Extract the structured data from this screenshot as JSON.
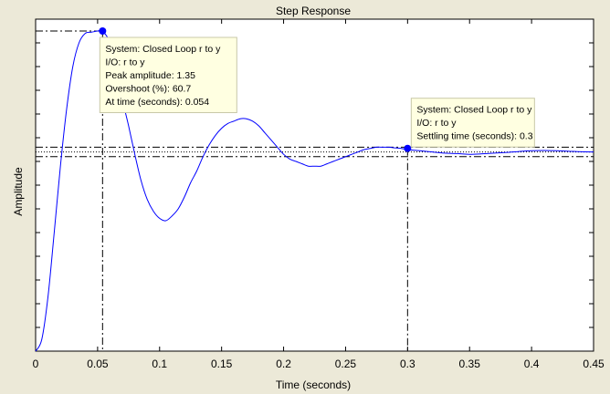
{
  "chart_data": {
    "type": "line",
    "title": "Step Response",
    "xlabel": "Time (seconds)",
    "ylabel": "Amplitude",
    "xlim": [
      0,
      0.45
    ],
    "ylim": [
      0,
      1.4
    ],
    "xticks": [
      "0",
      "0.05",
      "0.1",
      "0.15",
      "0.2",
      "0.25",
      "0.3",
      "0.35",
      "0.4",
      "0.45"
    ],
    "yticks_labeled": false,
    "grid": false,
    "final_value": 0.84,
    "settling_band": [
      0.82,
      0.86
    ],
    "series": [
      {
        "color": "#0000ff",
        "x": [
          0,
          0.005,
          0.01,
          0.015,
          0.02,
          0.025,
          0.03,
          0.035,
          0.04,
          0.045,
          0.05,
          0.054,
          0.06,
          0.065,
          0.07,
          0.075,
          0.08,
          0.085,
          0.09,
          0.095,
          0.1,
          0.105,
          0.11,
          0.115,
          0.12,
          0.125,
          0.13,
          0.135,
          0.14,
          0.145,
          0.15,
          0.155,
          0.16,
          0.165,
          0.17,
          0.175,
          0.18,
          0.185,
          0.19,
          0.195,
          0.2,
          0.205,
          0.21,
          0.215,
          0.22,
          0.225,
          0.23,
          0.235,
          0.24,
          0.245,
          0.25,
          0.255,
          0.26,
          0.265,
          0.27,
          0.275,
          0.28,
          0.285,
          0.29,
          0.295,
          0.3,
          0.31,
          0.32,
          0.33,
          0.34,
          0.35,
          0.36,
          0.37,
          0.38,
          0.39,
          0.4,
          0.41,
          0.42,
          0.43,
          0.44,
          0.45
        ],
        "y": [
          0,
          0.05,
          0.23,
          0.5,
          0.78,
          1.02,
          1.2,
          1.3,
          1.34,
          1.345,
          1.35,
          1.35,
          1.3,
          1.19,
          1.06,
          0.95,
          0.83,
          0.72,
          0.64,
          0.59,
          0.56,
          0.55,
          0.57,
          0.6,
          0.65,
          0.71,
          0.76,
          0.82,
          0.87,
          0.91,
          0.94,
          0.96,
          0.97,
          0.98,
          0.98,
          0.97,
          0.95,
          0.92,
          0.89,
          0.86,
          0.83,
          0.81,
          0.8,
          0.79,
          0.78,
          0.78,
          0.78,
          0.79,
          0.8,
          0.81,
          0.82,
          0.83,
          0.84,
          0.85,
          0.855,
          0.86,
          0.86,
          0.86,
          0.857,
          0.855,
          0.85,
          0.845,
          0.84,
          0.835,
          0.833,
          0.83,
          0.832,
          0.835,
          0.838,
          0.842,
          0.845,
          0.846,
          0.845,
          0.843,
          0.841,
          0.84
        ]
      }
    ],
    "markers": [
      {
        "name": "peak",
        "x": 0.054,
        "y": 1.35,
        "lines": [
          "System: Closed Loop r to y",
          "I/O: r to y",
          "Peak amplitude: 1.35",
          "Overshoot (%): 60.7",
          "At time (seconds): 0.054"
        ]
      },
      {
        "name": "settling",
        "x": 0.3,
        "y": 0.855,
        "lines": [
          "System: Closed Loop r to y",
          "I/O: r to y",
          "Settling time (seconds): 0.3"
        ]
      }
    ]
  }
}
